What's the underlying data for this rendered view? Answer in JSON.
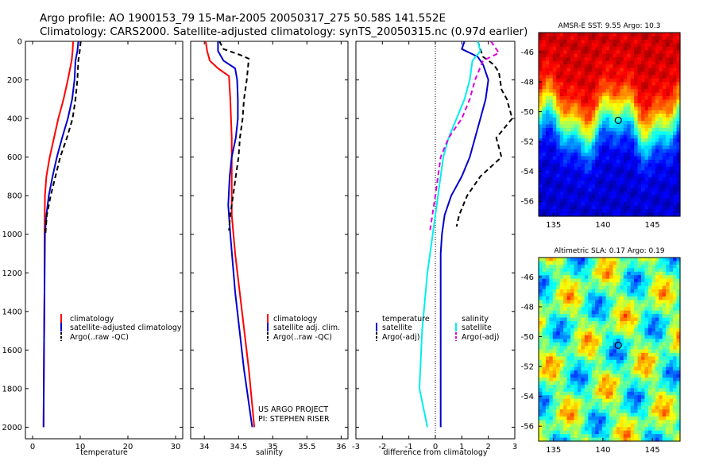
{
  "title": {
    "line1": "Argo profile: AO 1900153_79 15-Mar-2005 20050317_275 50.58S 141.552E",
    "line2": "Climatology: CARS2000. Satellite-adjusted climatology: synTS_20050315.nc (0.97d earlier)"
  },
  "credit": {
    "line1": "US ARGO PROJECT",
    "line2": "PI: STEPHEN RISER"
  },
  "colors": {
    "climatology": "#ff0000",
    "satellite": "#0000cc",
    "argo": "#000000",
    "salinity_satellite": "#00eeee",
    "salinity_argo": "#dd00dd"
  },
  "chart_data": [
    {
      "type": "line",
      "xlabel": "temperature",
      "ylabel": "",
      "xlim": [
        -1.5,
        31.5
      ],
      "ylim": [
        2060,
        0
      ],
      "xticks": [
        0,
        10,
        20,
        30
      ],
      "yticks": [
        0,
        200,
        400,
        600,
        800,
        1000,
        1200,
        1400,
        1600,
        1800,
        2000
      ],
      "series": [
        {
          "name": "climatology",
          "color": "#ff0000",
          "dash": "",
          "x": [
            8.5,
            8.4,
            8.2,
            7.4,
            6.5,
            5.4,
            4.5,
            3.6,
            2.9,
            2.6,
            2.5,
            2.5,
            2.4,
            2.3
          ],
          "y": [
            0,
            50,
            100,
            200,
            300,
            400,
            500,
            600,
            700,
            800,
            1000,
            1300,
            1600,
            2000
          ]
        },
        {
          "name": "satellite-adjusted climatology",
          "color": "#0000cc",
          "dash": "",
          "x": [
            9.6,
            9.4,
            9.0,
            8.8,
            8.3,
            7.4,
            6.2,
            5.1,
            4.2,
            3.4,
            2.9,
            2.6,
            2.5,
            2.4,
            2.3
          ],
          "y": [
            0,
            50,
            100,
            200,
            300,
            400,
            500,
            600,
            700,
            800,
            900,
            1000,
            1300,
            1600,
            2000
          ]
        },
        {
          "name": "Argo(..raw -QC)",
          "color": "#000000",
          "dash": "6,4",
          "x": [
            10.1,
            9.9,
            9.6,
            9.4,
            9.0,
            8.4,
            7.2,
            5.8,
            4.8,
            3.8,
            3.0,
            2.7
          ],
          "y": [
            0,
            50,
            100,
            200,
            300,
            400,
            500,
            600,
            700,
            800,
            900,
            1000
          ]
        }
      ],
      "legend": {
        "position": "bottom-right",
        "entries": [
          "climatology",
          "satellite-adjusted climatology",
          "Argo(..raw -QC)"
        ]
      }
    },
    {
      "type": "line",
      "xlabel": "salinity",
      "ylabel": "",
      "xlim": [
        33.8,
        36.1
      ],
      "ylim": [
        2060,
        0
      ],
      "xticks": [
        34,
        34.5,
        35,
        35.5,
        36
      ],
      "xticklabels": [
        "34",
        "34.5",
        "35",
        "35.5",
        "36"
      ],
      "series": [
        {
          "name": "climatology",
          "color": "#ff0000",
          "dash": "",
          "x": [
            34.02,
            34.04,
            34.08,
            34.2,
            34.36,
            34.38,
            34.39,
            34.4,
            34.4,
            34.4,
            34.4,
            34.45,
            34.55,
            34.65,
            34.73
          ],
          "y": [
            0,
            50,
            100,
            140,
            180,
            300,
            400,
            500,
            600,
            700,
            900,
            1100,
            1400,
            1700,
            2000
          ]
        },
        {
          "name": "satellite adj. clim.",
          "color": "#0000cc",
          "dash": "",
          "x": [
            34.2,
            34.2,
            34.28,
            34.45,
            34.48,
            34.49,
            34.49,
            34.46,
            34.4,
            34.37,
            34.35,
            34.38,
            34.45,
            34.58,
            34.7
          ],
          "y": [
            0,
            50,
            100,
            140,
            200,
            300,
            400,
            500,
            600,
            700,
            850,
            1000,
            1300,
            1700,
            2000
          ]
        },
        {
          "name": "Argo(..raw -QC)",
          "color": "#000000",
          "dash": "6,4",
          "x": [
            34.22,
            34.28,
            34.52,
            34.65,
            34.62,
            34.58,
            34.56,
            34.52,
            34.5,
            34.46,
            34.42,
            34.38,
            34.36
          ],
          "y": [
            0,
            40,
            70,
            90,
            200,
            300,
            400,
            500,
            600,
            700,
            800,
            900,
            980
          ]
        }
      ],
      "legend": {
        "position": "bottom-right",
        "entries": [
          "climatology",
          "satellite adj. clim.",
          "Argo(..raw -QC)"
        ]
      }
    },
    {
      "type": "line",
      "xlabel": "difference from climatology",
      "ylabel": "",
      "xlim": [
        -3,
        3
      ],
      "ylim": [
        2060,
        0
      ],
      "xticks": [
        -3,
        -2,
        -1,
        0,
        1,
        2,
        3
      ],
      "reference_line": {
        "x": 0,
        "style": "dotted"
      },
      "series": [
        {
          "name": "temperature satellite",
          "color": "#0000cc",
          "dash": "",
          "x": [
            1.1,
            1.0,
            1.6,
            1.8,
            2.0,
            1.9,
            1.7,
            1.5,
            1.3,
            1.0,
            0.6,
            0.35,
            0.25,
            0.2,
            0.2,
            0.2
          ],
          "y": [
            0,
            40,
            80,
            120,
            200,
            300,
            400,
            500,
            600,
            700,
            800,
            900,
            1000,
            1100,
            1400,
            2000
          ]
        },
        {
          "name": "temperature Argo(-adj)",
          "color": "#000000",
          "dash": "6,4",
          "x": [
            1.6,
            1.8,
            2.2,
            2.4,
            2.5,
            2.7,
            2.9,
            2.3,
            2.5,
            1.7,
            1.2,
            0.9,
            0.8
          ],
          "y": [
            0,
            80,
            120,
            160,
            250,
            300,
            400,
            500,
            600,
            700,
            800,
            900,
            960
          ]
        },
        {
          "name": "salinity satellite",
          "color": "#00eeee",
          "dash": "",
          "x": [
            1.6,
            1.7,
            1.4,
            1.3,
            1.1,
            0.8,
            0.5,
            0.3,
            0.1,
            -0.1,
            -0.3,
            -0.5,
            -0.6,
            -0.3
          ],
          "y": [
            0,
            50,
            100,
            200,
            300,
            400,
            500,
            600,
            800,
            1000,
            1200,
            1500,
            1800,
            2000
          ]
        },
        {
          "name": "salinity Argo(-adj)",
          "color": "#dd00dd",
          "dash": "6,4",
          "x": [
            2.1,
            2.4,
            1.8,
            1.5,
            1.3,
            1.0,
            0.5,
            0.2,
            0.0,
            -0.2
          ],
          "y": [
            0,
            60,
            100,
            200,
            300,
            400,
            500,
            600,
            800,
            980
          ]
        }
      ],
      "legend": {
        "position": "bottom",
        "columns": [
          {
            "header": "temperature",
            "entries": [
              "satellite",
              "Argo(-adj)"
            ]
          },
          {
            "header": "salinity",
            "entries": [
              "satellite",
              "Argo(-adj)"
            ]
          }
        ]
      }
    },
    {
      "type": "heatmap",
      "title": "AMSR-E SST: 9.55 Argo: 10.3",
      "xlim": [
        133.5,
        147.8
      ],
      "ylim": [
        -57,
        -44.7
      ],
      "xticks": [
        135,
        140,
        145
      ],
      "yticks": [
        -46,
        -48,
        -50,
        -52,
        -54,
        -56
      ],
      "colormap": "jet",
      "marker": {
        "x": 141.552,
        "y": -50.58
      }
    },
    {
      "type": "heatmap",
      "title": "Altimetric SLA: 0.17 Argo: 0.19",
      "xlim": [
        133.5,
        147.8
      ],
      "ylim": [
        -57,
        -44.7
      ],
      "xticks": [
        135,
        140,
        145
      ],
      "yticks": [
        -46,
        -48,
        -50,
        -52,
        -54,
        -56
      ],
      "colormap": "jet",
      "marker": {
        "x": 141.552,
        "y": -50.58
      }
    }
  ]
}
